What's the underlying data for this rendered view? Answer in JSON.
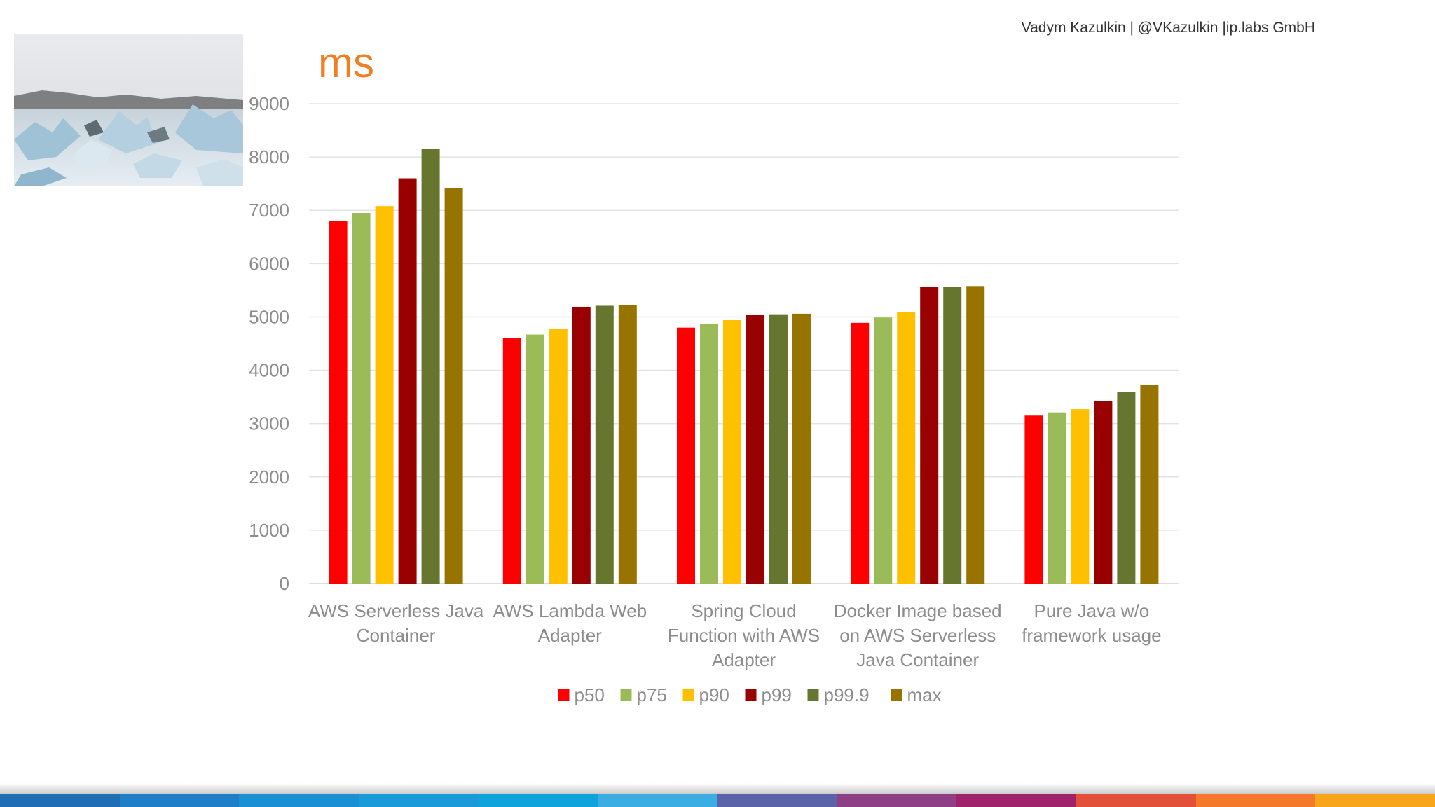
{
  "header": {
    "author": "Vadym Kazulkin | @VKazulkin |ip.labs GmbH",
    "title": "ms"
  },
  "image": {
    "description": "glacier-ice-photo"
  },
  "footer_colors": [
    "#1f6db4",
    "#1e7fc8",
    "#1a8fd4",
    "#1b9ad8",
    "#0fa3dc",
    "#3aaee3",
    "#5a62a8",
    "#8e3f86",
    "#a0226a",
    "#e2503a",
    "#f5792a",
    "#f7a51a"
  ],
  "chart_data": {
    "type": "bar",
    "title": "ms",
    "xlabel": "",
    "ylabel": "",
    "ylim": [
      0,
      9000
    ],
    "yticks": [
      0,
      1000,
      2000,
      3000,
      4000,
      5000,
      6000,
      7000,
      8000,
      9000
    ],
    "grid": true,
    "legend_position": "bottom",
    "categories": [
      [
        "AWS Serverless Java",
        "Container"
      ],
      [
        "AWS Lambda Web",
        "Adapter"
      ],
      [
        "Spring Cloud",
        "Function with AWS",
        "Adapter"
      ],
      [
        "Docker Image based",
        "on AWS Serverless",
        "Java Container"
      ],
      [
        "Pure Java w/o",
        "framework usage"
      ]
    ],
    "series": [
      {
        "name": "p50",
        "color": "#ff0000",
        "values": [
          6800,
          4600,
          4800,
          4890,
          3150
        ]
      },
      {
        "name": "p75",
        "color": "#9bbb59",
        "values": [
          6950,
          4670,
          4870,
          4990,
          3210
        ]
      },
      {
        "name": "p90",
        "color": "#ffc000",
        "values": [
          7080,
          4770,
          4940,
          5090,
          3270
        ]
      },
      {
        "name": "p99",
        "color": "#990000",
        "values": [
          7600,
          5190,
          5040,
          5560,
          3420
        ]
      },
      {
        "name": "p99.9",
        "color": "#66762f",
        "values": [
          8150,
          5210,
          5050,
          5570,
          3600
        ]
      },
      {
        "name": "max",
        "color": "#977300",
        "values": [
          7420,
          5220,
          5060,
          5580,
          3720
        ]
      }
    ]
  }
}
